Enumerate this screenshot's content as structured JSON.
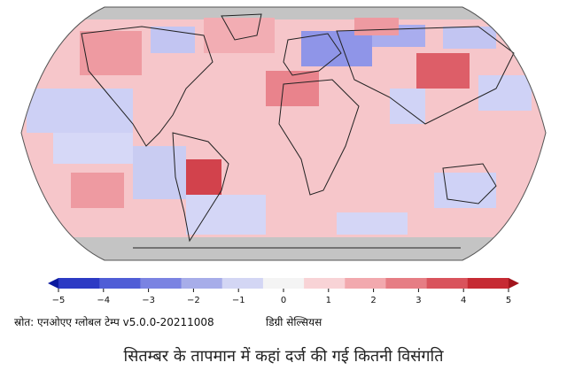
{
  "map": {
    "projection": "robinson",
    "colors": {
      "strong_warm": "#c9212a",
      "warm": "#f0a0a6",
      "light_warm": "#fbd4d7",
      "light_cool": "#d6d6f5",
      "cool": "#8f95e8",
      "no_data": "#c4c4c4",
      "land_outline": "#222222"
    }
  },
  "colorbar": {
    "ticks": [
      "−5",
      "−4",
      "−3",
      "−2",
      "−1",
      "0",
      "1",
      "2",
      "3",
      "4",
      "5"
    ],
    "colors": [
      "#0b1a9f",
      "#2c3ac4",
      "#4f5dd6",
      "#7a83e2",
      "#a7ade9",
      "#d3d6f4",
      "#f4f4f4",
      "#f8d3d6",
      "#f2a9ae",
      "#e67d84",
      "#d9535c",
      "#c62a33",
      "#a1141c"
    ]
  },
  "source": "स्रोत: एनओएए ग्लोबल टेम्प v5.0.0-20211008",
  "units": "डिग्री सेल्सियस",
  "caption": "सितम्बर के तापमान में कहां दर्ज की गई कितनी विसंगति"
}
